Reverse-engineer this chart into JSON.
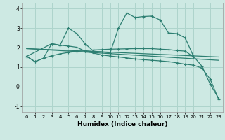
{
  "xlabel": "Humidex (Indice chaleur)",
  "xlim": [
    -0.5,
    23.5
  ],
  "ylim": [
    -1.3,
    4.3
  ],
  "yticks": [
    -1,
    0,
    1,
    2,
    3,
    4
  ],
  "xticks": [
    0,
    1,
    2,
    3,
    4,
    5,
    6,
    7,
    8,
    9,
    10,
    11,
    12,
    13,
    14,
    15,
    16,
    17,
    18,
    19,
    20,
    21,
    22,
    23
  ],
  "bg_color": "#cde9e3",
  "grid_color": "#aed4cc",
  "line_color": "#2d7f72",
  "series": [
    {
      "x": [
        0,
        1,
        2,
        3,
        4,
        5,
        6,
        7,
        8,
        9,
        10,
        11,
        12,
        13,
        14,
        15,
        16,
        17,
        18,
        19,
        20
      ],
      "y": [
        1.55,
        1.28,
        1.45,
        1.58,
        1.68,
        1.75,
        1.8,
        1.84,
        1.88,
        1.9,
        1.92,
        1.93,
        1.94,
        1.95,
        1.95,
        1.95,
        1.92,
        1.9,
        1.85,
        1.82,
        1.52
      ],
      "marker": "+"
    },
    {
      "x": [
        0,
        3,
        4,
        5,
        6,
        7,
        8,
        9,
        10,
        11,
        12,
        13,
        14,
        15,
        16,
        17,
        18,
        19,
        20,
        21,
        22,
        23
      ],
      "y": [
        1.55,
        2.2,
        2.12,
        3.0,
        2.72,
        2.2,
        1.82,
        1.78,
        1.72,
        3.0,
        3.78,
        3.55,
        3.6,
        3.62,
        3.42,
        2.75,
        2.72,
        2.5,
        1.55,
        1.05,
        0.12,
        -0.6
      ],
      "marker": "+"
    },
    {
      "x": [
        0,
        23
      ],
      "y": [
        1.95,
        1.52
      ],
      "marker": null
    },
    {
      "x": [
        0,
        23
      ],
      "y": [
        1.95,
        1.35
      ],
      "marker": null
    },
    {
      "x": [
        0,
        1,
        2,
        3,
        4,
        5,
        6,
        7,
        8,
        9,
        10,
        11,
        12,
        13,
        14,
        15,
        16,
        17,
        18,
        19,
        20,
        21,
        22,
        23
      ],
      "y": [
        1.55,
        1.28,
        1.45,
        2.2,
        2.12,
        2.08,
        2.02,
        1.82,
        1.72,
        1.62,
        1.57,
        1.52,
        1.47,
        1.42,
        1.38,
        1.35,
        1.32,
        1.28,
        1.22,
        1.15,
        1.1,
        0.95,
        0.38,
        -0.65
      ],
      "marker": "+"
    }
  ]
}
